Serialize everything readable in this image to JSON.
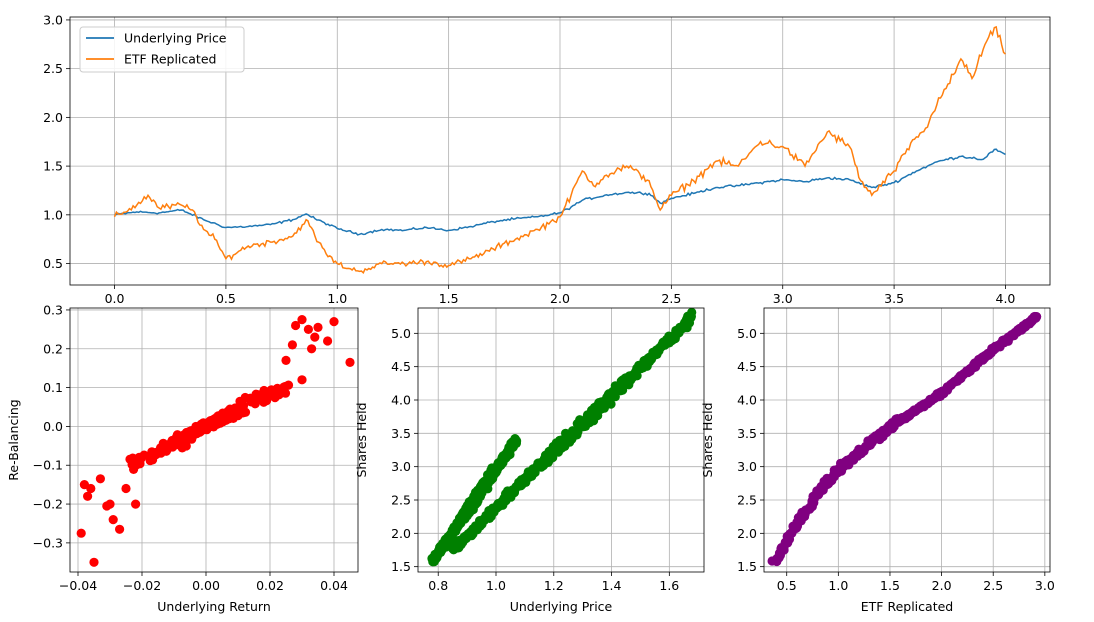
{
  "chart_data": [
    {
      "type": "line",
      "xlim": [
        -0.2,
        4.2
      ],
      "ylim": [
        0.28,
        3.03
      ],
      "xticks": [
        0.0,
        0.5,
        1.0,
        1.5,
        2.0,
        2.5,
        3.0,
        3.5,
        4.0
      ],
      "xtick_labels": [
        "0.0",
        "0.5",
        "1.0",
        "1.5",
        "2.0",
        "2.5",
        "3.0",
        "3.5",
        "4.0"
      ],
      "yticks": [
        0.5,
        1.0,
        1.5,
        2.0,
        2.5,
        3.0
      ],
      "ytick_labels": [
        "0.5",
        "1.0",
        "1.5",
        "2.0",
        "2.5",
        "3.0"
      ],
      "grid": true,
      "legend": "upper-left",
      "series": [
        {
          "name": "Underlying Price",
          "color": "#1f77b4",
          "x": [
            0.0,
            0.1,
            0.2,
            0.3,
            0.4,
            0.5,
            0.6,
            0.7,
            0.8,
            0.86,
            0.9,
            1.0,
            1.1,
            1.2,
            1.3,
            1.4,
            1.5,
            1.6,
            1.7,
            1.8,
            1.9,
            2.0,
            2.05,
            2.1,
            2.2,
            2.3,
            2.4,
            2.45,
            2.5,
            2.6,
            2.7,
            2.8,
            2.9,
            3.0,
            3.1,
            3.2,
            3.3,
            3.4,
            3.5,
            3.6,
            3.7,
            3.8,
            3.9,
            3.95,
            4.0
          ],
          "y": [
            1.0,
            1.03,
            1.02,
            1.05,
            0.95,
            0.87,
            0.88,
            0.9,
            0.95,
            1.01,
            0.96,
            0.86,
            0.8,
            0.85,
            0.84,
            0.87,
            0.84,
            0.88,
            0.93,
            0.96,
            0.98,
            1.02,
            1.08,
            1.15,
            1.2,
            1.23,
            1.22,
            1.12,
            1.17,
            1.22,
            1.28,
            1.3,
            1.33,
            1.36,
            1.34,
            1.38,
            1.36,
            1.28,
            1.33,
            1.45,
            1.55,
            1.6,
            1.57,
            1.67,
            1.62
          ]
        },
        {
          "name": "ETF Replicated",
          "color": "#ff7f0e",
          "x": [
            0.0,
            0.1,
            0.15,
            0.2,
            0.3,
            0.35,
            0.4,
            0.45,
            0.5,
            0.6,
            0.7,
            0.8,
            0.86,
            0.9,
            0.95,
            1.0,
            1.05,
            1.1,
            1.2,
            1.3,
            1.4,
            1.5,
            1.6,
            1.7,
            1.8,
            1.9,
            2.0,
            2.05,
            2.1,
            2.15,
            2.2,
            2.3,
            2.4,
            2.45,
            2.5,
            2.6,
            2.7,
            2.8,
            2.9,
            3.0,
            3.1,
            3.2,
            3.3,
            3.35,
            3.4,
            3.5,
            3.6,
            3.65,
            3.7,
            3.75,
            3.8,
            3.85,
            3.9,
            3.95,
            4.0
          ],
          "y": [
            0.98,
            1.1,
            1.2,
            1.07,
            1.1,
            1.05,
            0.85,
            0.75,
            0.55,
            0.68,
            0.72,
            0.78,
            0.95,
            0.78,
            0.6,
            0.5,
            0.45,
            0.42,
            0.5,
            0.5,
            0.52,
            0.48,
            0.55,
            0.65,
            0.75,
            0.85,
            0.98,
            1.2,
            1.45,
            1.3,
            1.4,
            1.5,
            1.35,
            1.05,
            1.2,
            1.35,
            1.55,
            1.5,
            1.75,
            1.7,
            1.5,
            1.85,
            1.7,
            1.35,
            1.2,
            1.45,
            1.8,
            1.9,
            2.2,
            2.35,
            2.6,
            2.4,
            2.7,
            2.92,
            2.65
          ]
        }
      ]
    },
    {
      "type": "scatter",
      "color": "#ff0000",
      "xlabel": "Underlying Return",
      "ylabel": "Re-Balancing",
      "xlim": [
        -0.0425,
        0.0475
      ],
      "ylim": [
        -0.375,
        0.305
      ],
      "xticks": [
        -0.04,
        -0.02,
        0.0,
        0.02,
        0.04
      ],
      "xtick_labels": [
        "−0.04",
        "−0.02",
        "0.00",
        "0.02",
        "0.04"
      ],
      "yticks": [
        -0.3,
        -0.2,
        -0.1,
        0.0,
        0.1,
        0.2,
        0.3
      ],
      "ytick_labels": [
        "−0.3",
        "−0.2",
        "−0.1",
        "0.0",
        "0.1",
        "0.2",
        "0.3"
      ],
      "grid": true,
      "points": [
        [
          -0.039,
          -0.275
        ],
        [
          -0.035,
          -0.35
        ],
        [
          -0.038,
          -0.15
        ],
        [
          -0.036,
          -0.16
        ],
        [
          -0.037,
          -0.18
        ],
        [
          -0.033,
          -0.135
        ],
        [
          -0.031,
          -0.205
        ],
        [
          -0.03,
          -0.2
        ],
        [
          -0.029,
          -0.24
        ],
        [
          -0.027,
          -0.265
        ],
        [
          -0.025,
          -0.16
        ],
        [
          -0.022,
          -0.2
        ],
        [
          0.03,
          0.275
        ],
        [
          0.035,
          0.255
        ],
        [
          0.028,
          0.26
        ],
        [
          0.045,
          0.165
        ],
        [
          0.032,
          0.25
        ],
        [
          0.034,
          0.23
        ],
        [
          0.04,
          0.27
        ],
        [
          0.038,
          0.22
        ],
        [
          0.033,
          0.2
        ],
        [
          0.03,
          0.12
        ],
        [
          0.027,
          0.21
        ],
        [
          0.025,
          0.17
        ]
      ],
      "band": {
        "x_min": -0.028,
        "x_max": 0.03,
        "slope": 4.2,
        "spread": 0.035
      }
    },
    {
      "type": "scatter",
      "color": "#008000",
      "xlabel": "Underlying Price",
      "ylabel": "Shares Held",
      "xlim": [
        0.73,
        1.72
      ],
      "ylim": [
        1.42,
        5.38
      ],
      "xticks": [
        0.8,
        1.0,
        1.2,
        1.4,
        1.6
      ],
      "xtick_labels": [
        "0.8",
        "1.0",
        "1.2",
        "1.4",
        "1.6"
      ],
      "yticks": [
        1.5,
        2.0,
        2.5,
        3.0,
        3.5,
        4.0,
        4.5,
        5.0
      ],
      "ytick_labels": [
        "1.5",
        "2.0",
        "2.5",
        "3.0",
        "3.5",
        "4.0",
        "4.5",
        "5.0"
      ],
      "grid": true,
      "clusters": [
        {
          "from": [
            0.78,
            1.58
          ],
          "to": [
            1.07,
            3.4
          ],
          "spread": 0.08
        },
        {
          "from": [
            0.85,
            1.75
          ],
          "to": [
            1.68,
            5.25
          ],
          "spread": 0.1
        }
      ]
    },
    {
      "type": "scatter",
      "color": "#800080",
      "xlabel": "ETF Replicated",
      "ylabel": "Shares Held",
      "xlim": [
        0.28,
        3.05
      ],
      "ylim": [
        1.42,
        5.38
      ],
      "xticks": [
        0.5,
        1.0,
        1.5,
        2.0,
        2.5,
        3.0
      ],
      "xtick_labels": [
        "0.5",
        "1.0",
        "1.5",
        "2.0",
        "2.5",
        "3.0"
      ],
      "yticks": [
        1.5,
        2.0,
        2.5,
        3.0,
        3.5,
        4.0,
        4.5,
        5.0
      ],
      "ytick_labels": [
        "1.5",
        "2.0",
        "2.5",
        "3.0",
        "3.5",
        "4.0",
        "4.5",
        "5.0"
      ],
      "grid": true,
      "curve": {
        "x": [
          0.38,
          0.6,
          0.8,
          1.0,
          1.3,
          1.6,
          2.0,
          2.5,
          2.92
        ],
        "y": [
          1.55,
          2.15,
          2.6,
          2.95,
          3.35,
          3.7,
          4.1,
          4.75,
          5.25
        ],
        "spread": 0.08
      }
    }
  ]
}
